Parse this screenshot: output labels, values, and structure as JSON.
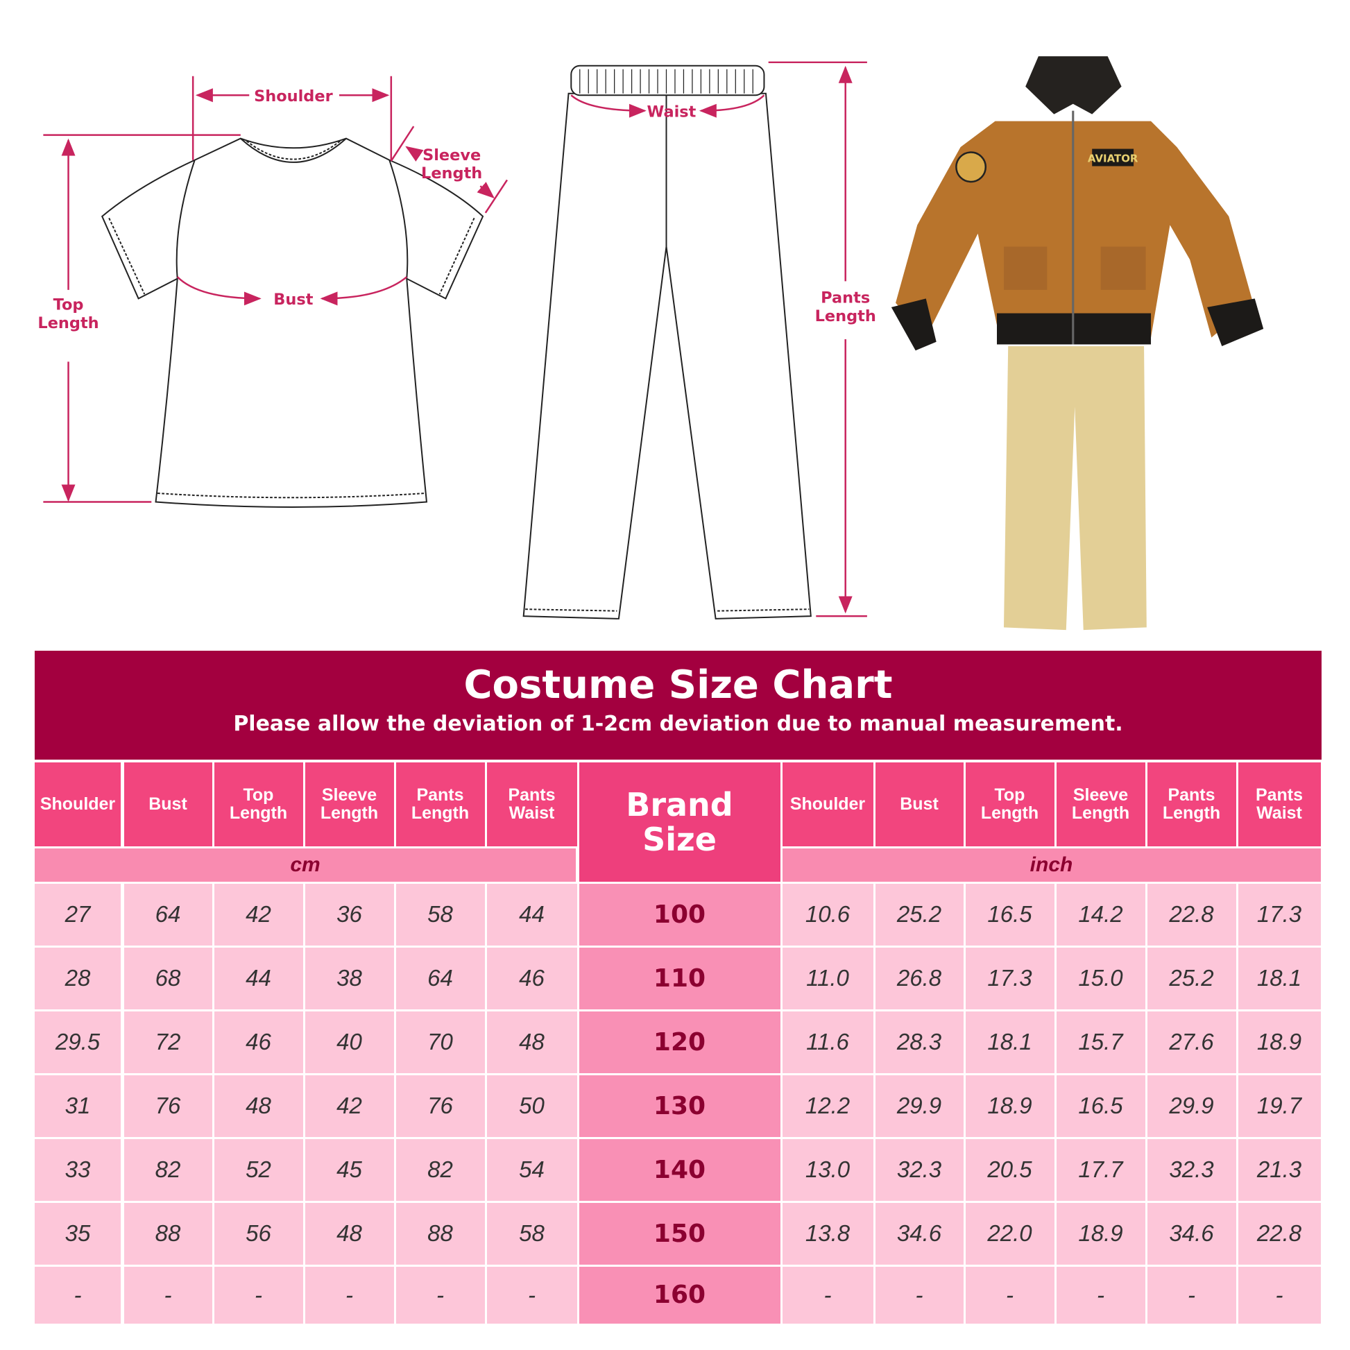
{
  "diagram_labels": {
    "shoulder": "Shoulder",
    "sleeve_length": [
      "Sleeve",
      "Length"
    ],
    "top_length": [
      "Top",
      "Length"
    ],
    "bust": "Bust",
    "waist": "Waist",
    "pants_length": [
      "Pants",
      "Length"
    ],
    "patch_text": "AVIATOR"
  },
  "colors": {
    "banner": "#a3003f",
    "header": "#f2457e",
    "unit_row": "#f98bb0",
    "data_cell": "#fdc6d9",
    "brand_cell": "#f990b5",
    "measure_line": "#c8245e"
  },
  "chart": {
    "title": "Costume Size Chart",
    "subtitle": "Please allow the deviation of 1-2cm deviation due to manual measurement.",
    "columns_left": [
      "Shoulder",
      "Bust",
      "Top\nLength",
      "Sleeve\nLength",
      "Pants\nLength",
      "Pants\nWaist"
    ],
    "brand_header": "Brand\nSize",
    "columns_right": [
      "Shoulder",
      "Bust",
      "Top\nLength",
      "Sleeve\nLength",
      "Pants\nLength",
      "Pants\nWaist"
    ],
    "unit_left": "cm",
    "unit_right": "inch",
    "rows": [
      {
        "cm": [
          "27",
          "64",
          "42",
          "36",
          "58",
          "44"
        ],
        "size": "100",
        "inch": [
          "10.6",
          "25.2",
          "16.5",
          "14.2",
          "22.8",
          "17.3"
        ]
      },
      {
        "cm": [
          "28",
          "68",
          "44",
          "38",
          "64",
          "46"
        ],
        "size": "110",
        "inch": [
          "11.0",
          "26.8",
          "17.3",
          "15.0",
          "25.2",
          "18.1"
        ]
      },
      {
        "cm": [
          "29.5",
          "72",
          "46",
          "40",
          "70",
          "48"
        ],
        "size": "120",
        "inch": [
          "11.6",
          "28.3",
          "18.1",
          "15.7",
          "27.6",
          "18.9"
        ]
      },
      {
        "cm": [
          "31",
          "76",
          "48",
          "42",
          "76",
          "50"
        ],
        "size": "130",
        "inch": [
          "12.2",
          "29.9",
          "18.9",
          "16.5",
          "29.9",
          "19.7"
        ]
      },
      {
        "cm": [
          "33",
          "82",
          "52",
          "45",
          "82",
          "54"
        ],
        "size": "140",
        "inch": [
          "13.0",
          "32.3",
          "20.5",
          "17.7",
          "32.3",
          "21.3"
        ]
      },
      {
        "cm": [
          "35",
          "88",
          "56",
          "48",
          "88",
          "58"
        ],
        "size": "150",
        "inch": [
          "13.8",
          "34.6",
          "22.0",
          "18.9",
          "34.6",
          "22.8"
        ]
      },
      {
        "cm": [
          "-",
          "-",
          "-",
          "-",
          "-",
          "-"
        ],
        "size": "160",
        "inch": [
          "-",
          "-",
          "-",
          "-",
          "-",
          "-"
        ]
      }
    ]
  }
}
